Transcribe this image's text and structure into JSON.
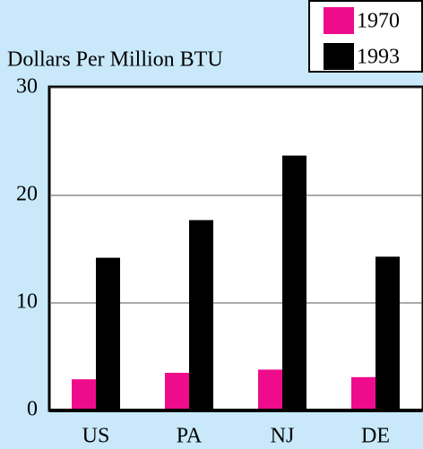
{
  "chart_data": {
    "type": "bar",
    "title": "Dollars Per Million BTU",
    "categories": [
      "US",
      "PA",
      "NJ",
      "DE"
    ],
    "series": [
      {
        "name": "1970",
        "color": "#ee0c8c",
        "values": [
          2.9,
          3.5,
          3.8,
          3.1
        ]
      },
      {
        "name": "1993",
        "color": "#000000",
        "values": [
          14.2,
          17.7,
          23.7,
          14.3
        ]
      }
    ],
    "ylim": [
      0,
      30
    ],
    "yticks": [
      0,
      10,
      20,
      30
    ],
    "grid": true,
    "legend": "top-right"
  }
}
